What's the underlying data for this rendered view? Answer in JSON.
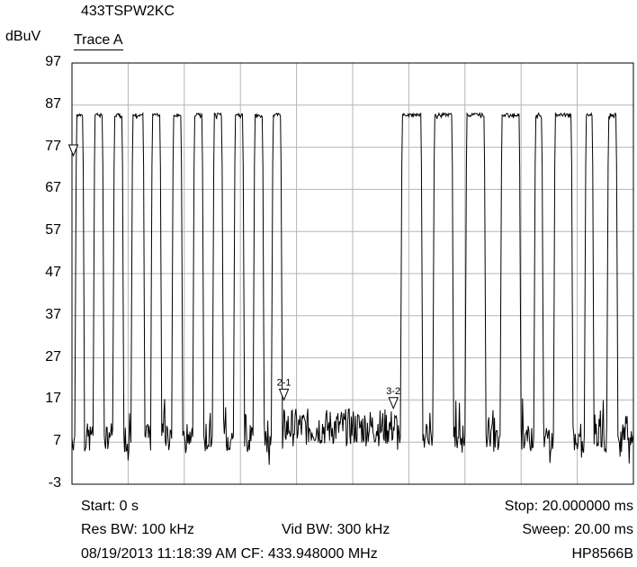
{
  "header": {
    "title": "433TSPW2KC",
    "unit": "dBuV",
    "trace": "Trace A"
  },
  "chart_data": {
    "type": "line",
    "xlabel": "",
    "ylabel": "dBuV",
    "ylim": [
      -3,
      97
    ],
    "yticks": [
      97,
      87,
      77,
      67,
      57,
      47,
      37,
      27,
      17,
      7,
      -3
    ],
    "xlim": [
      0,
      20
    ],
    "x_unit": "ms",
    "x_divisions": 10,
    "grid": true,
    "series": [
      {
        "name": "Trace A",
        "high_level": 85,
        "low_level": 8,
        "pulses_ms": [
          [
            0.1,
            0.45
          ],
          [
            0.75,
            1.15
          ],
          [
            1.45,
            1.85
          ],
          [
            2.1,
            2.6
          ],
          [
            2.8,
            3.2
          ],
          [
            3.55,
            3.95
          ],
          [
            4.3,
            4.7
          ],
          [
            5.0,
            5.4
          ],
          [
            5.75,
            6.15
          ],
          [
            6.45,
            6.85
          ],
          [
            7.1,
            7.5
          ],
          [
            11.7,
            12.5
          ],
          [
            12.85,
            13.6
          ],
          [
            14.0,
            14.75
          ],
          [
            15.25,
            16.0
          ],
          [
            16.45,
            16.8
          ],
          [
            17.15,
            17.85
          ],
          [
            18.25,
            18.6
          ],
          [
            19.05,
            19.45
          ]
        ],
        "noise_band_ms": [
          7.55,
          11.6
        ],
        "noise_level_range": [
          6,
          15
        ]
      }
    ],
    "markers": [
      {
        "label": "1",
        "x_ms": 0.05,
        "y": 75
      },
      {
        "label": "2-1",
        "x_ms": 7.55,
        "y": 17
      },
      {
        "label": "3-2",
        "x_ms": 11.45,
        "y": 15
      }
    ]
  },
  "footer": {
    "start": "Start: 0 s",
    "stop": "Stop: 20.000000 ms",
    "res_bw": "Res BW: 100 kHz",
    "vid_bw": "Vid BW: 300 kHz",
    "sweep": "Sweep: 20.00 ms",
    "timestamp_cf": "08/19/2013 11:18:39 AM CF: 433.948000 MHz",
    "instrument": "HP8566B"
  }
}
